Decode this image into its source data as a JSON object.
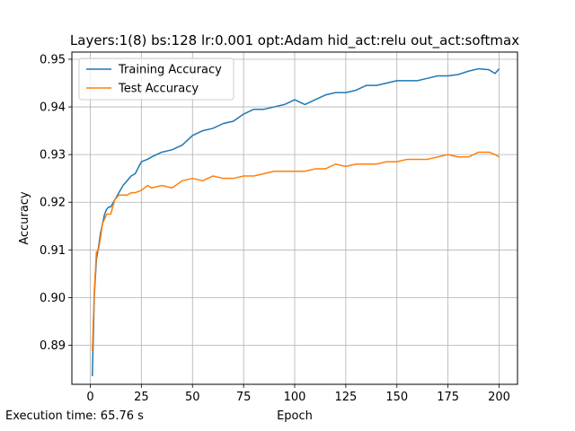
{
  "chart_data": {
    "type": "line",
    "title": "Layers:1(8) bs:128 lr:0.001 opt:Adam hid_act:relu out_act:softmax",
    "xlabel": "Epoch",
    "ylabel": "Accuracy",
    "xlim": [
      -9,
      209
    ],
    "ylim": [
      0.8818,
      0.9515
    ],
    "xticks": [
      0,
      25,
      50,
      75,
      100,
      125,
      150,
      175,
      200
    ],
    "xtick_labels": [
      "0",
      "25",
      "50",
      "75",
      "100",
      "125",
      "150",
      "175",
      "200"
    ],
    "yticks": [
      0.89,
      0.9,
      0.91,
      0.92,
      0.93,
      0.94,
      0.95
    ],
    "ytick_labels": [
      "0.89",
      "0.90",
      "0.91",
      "0.92",
      "0.93",
      "0.94",
      "0.95"
    ],
    "grid": true,
    "legend_position": "top-left",
    "footer_text": "Execution time: 65.76 s",
    "series": [
      {
        "name": "Training Accuracy",
        "color": "#1f77b4",
        "x": [
          1,
          2,
          3,
          4,
          5,
          6,
          7,
          8,
          9,
          10,
          12,
          14,
          16,
          18,
          20,
          22,
          25,
          28,
          30,
          35,
          40,
          45,
          50,
          55,
          60,
          65,
          70,
          75,
          80,
          85,
          90,
          95,
          100,
          105,
          110,
          115,
          120,
          125,
          130,
          135,
          140,
          145,
          150,
          155,
          160,
          165,
          170,
          175,
          180,
          185,
          190,
          195,
          198,
          200
        ],
        "y": [
          0.8835,
          0.9005,
          0.908,
          0.9105,
          0.9135,
          0.9155,
          0.9175,
          0.9185,
          0.919,
          0.919,
          0.9205,
          0.922,
          0.9235,
          0.9245,
          0.9255,
          0.926,
          0.9285,
          0.929,
          0.9295,
          0.9305,
          0.931,
          0.932,
          0.934,
          0.935,
          0.9355,
          0.9365,
          0.937,
          0.9385,
          0.9395,
          0.9395,
          0.94,
          0.9405,
          0.9415,
          0.9405,
          0.9415,
          0.9425,
          0.943,
          0.943,
          0.9435,
          0.9445,
          0.9445,
          0.945,
          0.9455,
          0.9455,
          0.9455,
          0.946,
          0.9465,
          0.9465,
          0.9468,
          0.9475,
          0.948,
          0.9478,
          0.947,
          0.948
        ]
      },
      {
        "name": "Test Accuracy",
        "color": "#ff7f0e",
        "x": [
          1,
          2,
          3,
          4,
          5,
          6,
          7,
          8,
          9,
          10,
          12,
          14,
          16,
          18,
          20,
          22,
          25,
          28,
          30,
          35,
          40,
          45,
          50,
          55,
          60,
          65,
          70,
          75,
          80,
          85,
          90,
          95,
          100,
          105,
          110,
          115,
          120,
          125,
          130,
          135,
          140,
          145,
          150,
          155,
          160,
          165,
          170,
          175,
          180,
          185,
          190,
          195,
          198,
          200
        ],
        "y": [
          0.8888,
          0.9015,
          0.9095,
          0.91,
          0.9125,
          0.9155,
          0.9165,
          0.9175,
          0.9175,
          0.9175,
          0.9205,
          0.9215,
          0.9215,
          0.9215,
          0.922,
          0.922,
          0.9225,
          0.9235,
          0.923,
          0.9235,
          0.923,
          0.9245,
          0.925,
          0.9245,
          0.9255,
          0.925,
          0.925,
          0.9255,
          0.9255,
          0.926,
          0.9265,
          0.9265,
          0.9265,
          0.9265,
          0.927,
          0.927,
          0.928,
          0.9275,
          0.928,
          0.928,
          0.928,
          0.9285,
          0.9285,
          0.929,
          0.929,
          0.929,
          0.9295,
          0.93,
          0.9295,
          0.9295,
          0.9305,
          0.9305,
          0.93,
          0.9295
        ]
      }
    ]
  }
}
